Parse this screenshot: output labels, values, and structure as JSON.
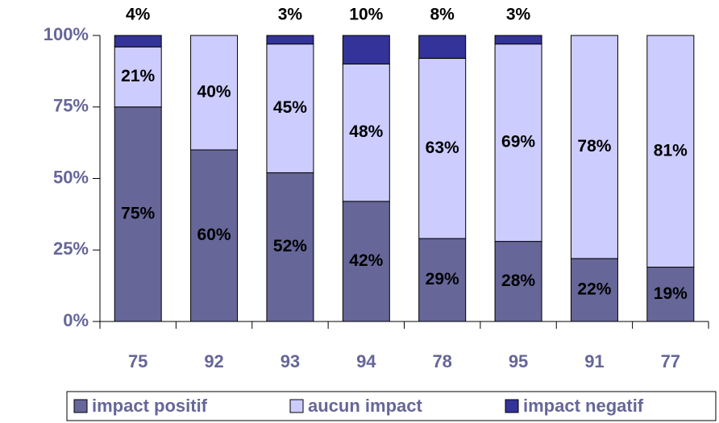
{
  "chart_data": {
    "type": "stacked_bar",
    "categories": [
      "75",
      "92",
      "93",
      "94",
      "78",
      "95",
      "91",
      "77"
    ],
    "series": [
      {
        "name": "impact positif",
        "color": "#666699",
        "values": [
          75,
          60,
          52,
          42,
          29,
          28,
          22,
          19
        ],
        "value_labels": [
          "75%",
          "60%",
          "52%",
          "42%",
          "29%",
          "28%",
          "22%",
          "19%"
        ]
      },
      {
        "name": "aucun impact",
        "color": "#ccccff",
        "values": [
          21,
          40,
          45,
          48,
          63,
          69,
          78,
          81
        ],
        "value_labels": [
          "21%",
          "40%",
          "45%",
          "48%",
          "63%",
          "69%",
          "78%",
          "81%"
        ]
      },
      {
        "name": "impact negatif",
        "color": "#333399",
        "values": [
          4,
          null,
          3,
          10,
          8,
          3,
          null,
          null
        ],
        "value_labels": [
          "4%",
          null,
          "3%",
          "10%",
          "8%",
          "3%",
          null,
          null
        ]
      }
    ],
    "ylim": [
      0,
      100
    ],
    "yticks": [
      {
        "value": 0,
        "label": "0%"
      },
      {
        "value": 25,
        "label": "25%"
      },
      {
        "value": 50,
        "label": "50%"
      },
      {
        "value": 75,
        "label": "75%"
      },
      {
        "value": 100,
        "label": "100%"
      }
    ],
    "legend": "bottom"
  }
}
